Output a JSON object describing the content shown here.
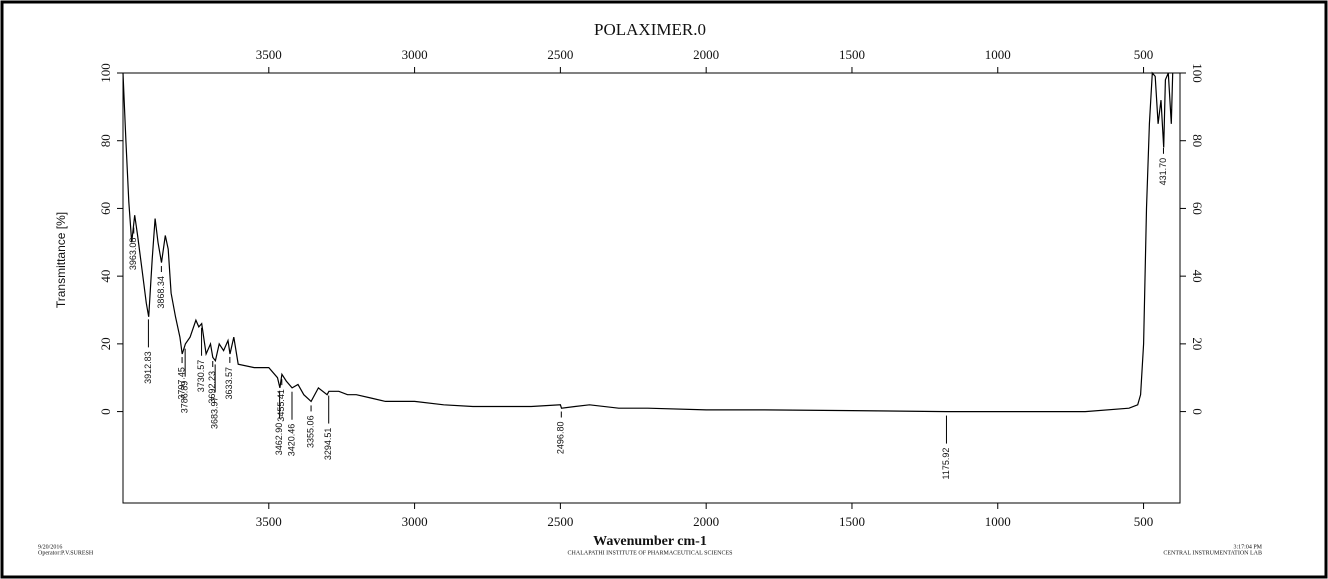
{
  "chart_data": {
    "type": "line",
    "title": "POLAXIMER.0",
    "xlabel": "Wavenumber cm-1",
    "ylabel": "Transmittance [%]",
    "footer": [
      "9/20/2016",
      "Operator:P.V.SURESH",
      "CHALAPATHI INSTITUTE OF PHARMACEUTICAL SCIENCES",
      "3:17:04 PM",
      "CENTRAL INSTRUMENTATION LAB"
    ],
    "color": "#000000",
    "x": [
      4000,
      3990,
      3980,
      3970,
      3960,
      3950,
      3935,
      3920,
      3912,
      3900,
      3890,
      3880,
      3868,
      3855,
      3845,
      3835,
      3820,
      3805,
      3797,
      3786,
      3770,
      3750,
      3740,
      3730,
      3715,
      3700,
      3692,
      3683,
      3670,
      3655,
      3640,
      3633,
      3620,
      3605,
      3550,
      3500,
      3470,
      3462,
      3455,
      3440,
      3420,
      3400,
      3380,
      3355,
      3330,
      3300,
      3294,
      3260,
      3230,
      3200,
      3150,
      3100,
      3000,
      2900,
      2800,
      2700,
      2600,
      2500,
      2496,
      2450,
      2400,
      2300,
      2200,
      2000,
      1800,
      1500,
      1175,
      1000,
      700,
      550,
      520,
      510,
      500,
      490,
      480,
      470,
      460,
      450,
      440,
      431,
      425,
      415,
      405,
      400
    ],
    "values": [
      100,
      80,
      62,
      50,
      58,
      52,
      42,
      32,
      28,
      45,
      57,
      50,
      44,
      52,
      48,
      35,
      28,
      22,
      17,
      20,
      22,
      27,
      25,
      26,
      17,
      20,
      16,
      15,
      20,
      18,
      21,
      17,
      22,
      14,
      13,
      13,
      10,
      7,
      11,
      9,
      7,
      8,
      5,
      3,
      7,
      5,
      6,
      6,
      5,
      5,
      4,
      3,
      3,
      2,
      1.5,
      1.5,
      1.5,
      2,
      1,
      1.5,
      2,
      1,
      1,
      0.5,
      0.5,
      0.3,
      0,
      0,
      0,
      1,
      2,
      5,
      20,
      60,
      85,
      100,
      99,
      85,
      92,
      78,
      98,
      100,
      85,
      100
    ],
    "peaks": [
      3963.08,
      3912.83,
      3868.34,
      3786.89,
      3797.45,
      3730.57,
      3692.23,
      3683.97,
      3633.57,
      3462.9,
      3455.41,
      3420.46,
      3355.06,
      3294.51,
      2496.8,
      1175.92,
      431.7
    ],
    "peak_labels": [
      "3963.08",
      "3912.83",
      "3868.34",
      "3786.89",
      "3797.45",
      "3730.57",
      "3692.23",
      "3683.97",
      "3633.57",
      "3462.90",
      "3455.41",
      "3420.46",
      "3355.06",
      "3294.51",
      "2496.80",
      "1175.92",
      "431.70"
    ],
    "xlim": [
      4000,
      375
    ],
    "ylim": [
      -27,
      100
    ],
    "xticks": [
      3500,
      3000,
      2500,
      2000,
      1500,
      1000,
      500
    ],
    "yticks": [
      0,
      20,
      40,
      60,
      80,
      100
    ]
  }
}
